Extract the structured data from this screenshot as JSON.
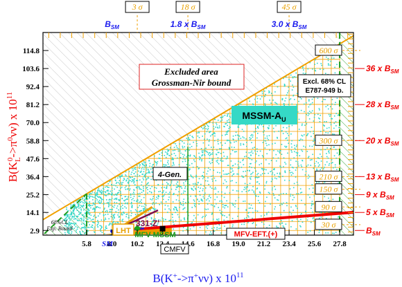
{
  "chart_data": {
    "type": "scatter",
    "xlabel_main": "B(K",
    "xlabel_sup": "+",
    "xlabel_mid": "->π",
    "xlabel_sup2": "+",
    "xlabel_end": "νν) x 10",
    "xlabel_exp": "11",
    "ylabel_main": "B(K",
    "ylabel_sub": "L",
    "ylabel_sup": "0",
    "ylabel_mid": "->π",
    "ylabel_sup2": "0",
    "ylabel_end": "νν) x 10",
    "ylabel_exp": "11",
    "xlim": [
      2.0,
      29.0
    ],
    "ylim": [
      0.0,
      126.0
    ],
    "x_ticks": [
      5.8,
      8.0,
      10.2,
      12.4,
      14.6,
      16.8,
      19.0,
      21.2,
      23.4,
      25.6,
      27.8
    ],
    "x_tick_labels": [
      "5.8",
      "8.0",
      "10.2",
      "12.4",
      "14.6",
      "16.8",
      "19.0",
      "21.2",
      "23.4",
      "25.6",
      "27.8"
    ],
    "y_ticks": [
      2.9,
      14.1,
      25.2,
      36.4,
      47.6,
      58.8,
      70.0,
      81.2,
      92.4,
      103.6,
      114.8
    ],
    "y_tick_labels": [
      "2.9",
      "14.1",
      "25.2",
      "36.4",
      "47.6",
      "58.8",
      "70.0",
      "81.2",
      "92.4",
      "103.6",
      "114.8"
    ],
    "top_axis": {
      "sigma_labels": [
        {
          "text": "3 σ",
          "x": 10.2
        },
        {
          "text": "18 σ",
          "x": 14.6
        },
        {
          "text": "45 σ",
          "x": 23.4
        }
      ],
      "bsm_labels": [
        {
          "prefix": "",
          "text": "B",
          "sub": "SM",
          "x": 8.0
        },
        {
          "prefix": "1.8 x ",
          "text": "B",
          "sub": "SM",
          "x": 14.6
        },
        {
          "prefix": "3.0 x ",
          "text": "B",
          "sub": "SM",
          "x": 23.4
        }
      ]
    },
    "right_axis": {
      "sigma_labels": [
        {
          "text": "600 σ",
          "y": 114.8
        },
        {
          "text": "300 σ",
          "y": 58.8
        },
        {
          "text": "210 σ",
          "y": 36.4
        },
        {
          "text": "150 σ",
          "y": 28.5
        },
        {
          "text": "90 σ",
          "y": 17.5
        },
        {
          "text": "30 σ",
          "y": 6.5
        }
      ],
      "bsm_labels": [
        {
          "prefix": "36 x ",
          "text": "B",
          "sub": "SM",
          "y": 103.6
        },
        {
          "prefix": "28 x ",
          "text": "B",
          "sub": "SM",
          "y": 81.2
        },
        {
          "prefix": "20 x ",
          "text": "B",
          "sub": "SM",
          "y": 58.8
        },
        {
          "prefix": "13 x ",
          "text": "B",
          "sub": "SM",
          "y": 36.4
        },
        {
          "prefix": "9 x ",
          "text": "B",
          "sub": "SM",
          "y": 25.2
        },
        {
          "prefix": "5 x ",
          "text": "B",
          "sub": "SM",
          "y": 14.1
        },
        {
          "prefix": "",
          "text": "B",
          "sub": "SM",
          "y": 2.9
        }
      ]
    },
    "regions": {
      "grossman_nir": {
        "line": [
          [
            2.0,
            9.6
          ],
          [
            29.0,
            124.0
          ]
        ],
        "label_line1": "Excluded area",
        "label_line2": "Grossman-Nir bound"
      },
      "exp_bound": {
        "x_min": 5.8,
        "x_max": 27.8,
        "label_right_line1": "Excl. 68% CL",
        "label_right_line2": "E787-949 b.",
        "label_left_line1": "68%CL",
        "label_left_line2": "Exp. Bound"
      }
    },
    "models": [
      {
        "name": "MSSM-A",
        "sub": "U",
        "x": 20.0,
        "y": 73.0
      },
      {
        "name": "4-Gen.",
        "x": 14.6,
        "y": 43.5
      },
      {
        "name": "LHT",
        "x": 9.3,
        "y": 10.5
      },
      {
        "name": "331-Z'",
        "x": 11.2,
        "y": 13.8
      },
      {
        "name": "MFV-MSSM",
        "x": 10.7,
        "y": 6.8
      },
      {
        "name": "SM",
        "x": 8.0,
        "y": 2.9
      },
      {
        "name": "CMFV",
        "x": 12.4,
        "y": 2.1
      },
      {
        "name": "MFV-EFT.(+)",
        "x": 22.5,
        "y": 10.4
      }
    ],
    "colors": {
      "scatter": "#2fd7c9",
      "grid": "#f0a000",
      "grossman_line": "#f0a000",
      "exp_bound": "#1f9b1f",
      "mfv_eft": "#ee0000",
      "mssm_box": "#35d9c6",
      "bsm_blue": "#1a1aee",
      "bsm_red": "#ee0000",
      "lht": "#e8a000",
      "z331": "#7a0d4e",
      "mfv_mssm": "#1aa11a",
      "sm_band": "#ee9900"
    }
  }
}
